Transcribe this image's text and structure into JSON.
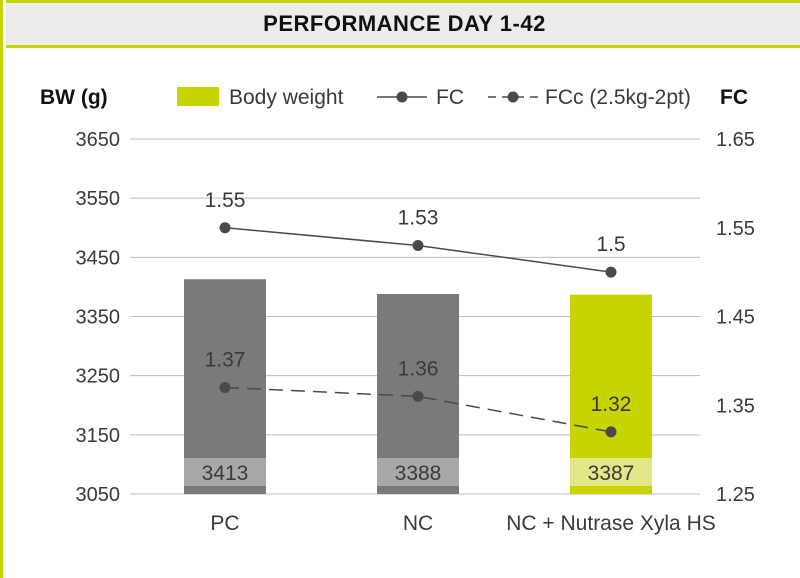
{
  "title": "PERFORMANCE DAY 1-42",
  "colors": {
    "accent": "#c8d400",
    "bar_gray": "#7a7a7a",
    "bar_label_box_gray": "#a8a8a8",
    "bar_label_box_accent": "#e2e88a",
    "line": "#4a4a4a",
    "gridline": "#bdbdbd"
  },
  "chart_data": {
    "type": "bar",
    "categories": [
      "PC",
      "NC",
      "NC + Nutrase Xyla HS"
    ],
    "left_axis": {
      "label": "BW (g)",
      "ticks": [
        3650,
        3550,
        3450,
        3350,
        3250,
        3150,
        3050
      ],
      "ylim": [
        3050,
        3650
      ]
    },
    "right_axis": {
      "label": "FC",
      "ticks": [
        1.65,
        1.55,
        1.45,
        1.35,
        1.25
      ],
      "ylim": [
        1.25,
        1.65
      ]
    },
    "series": [
      {
        "name": "Body weight",
        "kind": "bar",
        "axis": "left",
        "values": [
          3413,
          3388,
          3387
        ],
        "highlight_index": 2
      },
      {
        "name": "FC",
        "kind": "line",
        "style": "solid",
        "axis": "right",
        "values": [
          1.55,
          1.53,
          1.5
        ]
      },
      {
        "name": "FCc (2.5kg-2pt)",
        "kind": "line",
        "style": "dashed",
        "axis": "right",
        "values": [
          1.37,
          1.36,
          1.32
        ]
      }
    ],
    "legend": {
      "placement": "top",
      "items": [
        "Body weight",
        "FC",
        "FCc (2.5kg-2pt)"
      ]
    },
    "grid": true
  }
}
